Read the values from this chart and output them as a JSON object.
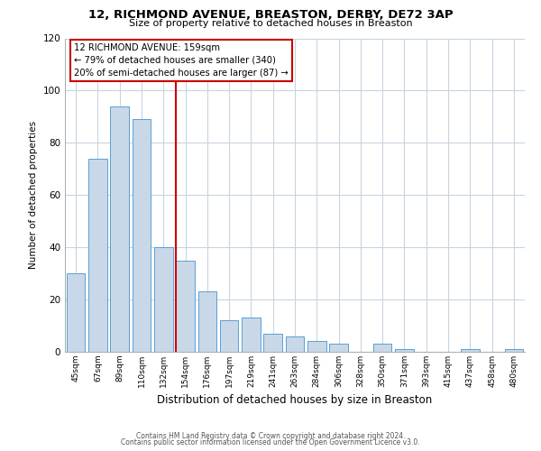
{
  "title_line1": "12, RICHMOND AVENUE, BREASTON, DERBY, DE72 3AP",
  "title_line2": "Size of property relative to detached houses in Breaston",
  "xlabel": "Distribution of detached houses by size in Breaston",
  "ylabel": "Number of detached properties",
  "bar_labels": [
    "45sqm",
    "67sqm",
    "89sqm",
    "110sqm",
    "132sqm",
    "154sqm",
    "176sqm",
    "197sqm",
    "219sqm",
    "241sqm",
    "263sqm",
    "284sqm",
    "306sqm",
    "328sqm",
    "350sqm",
    "371sqm",
    "393sqm",
    "415sqm",
    "437sqm",
    "458sqm",
    "480sqm"
  ],
  "bar_values": [
    30,
    74,
    94,
    89,
    40,
    35,
    23,
    12,
    13,
    7,
    6,
    4,
    3,
    0,
    3,
    1,
    0,
    0,
    1,
    0,
    1
  ],
  "bar_color": "#c8d8e8",
  "bar_edge_color": "#5a9fd4",
  "highlight_color": "#cc0000",
  "vline_index": 5,
  "ylim": [
    0,
    120
  ],
  "yticks": [
    0,
    20,
    40,
    60,
    80,
    100,
    120
  ],
  "annotation_title": "12 RICHMOND AVENUE: 159sqm",
  "annotation_line1": "← 79% of detached houses are smaller (340)",
  "annotation_line2": "20% of semi-detached houses are larger (87) →",
  "footer_line1": "Contains HM Land Registry data © Crown copyright and database right 2024.",
  "footer_line2": "Contains public sector information licensed under the Open Government Licence v3.0.",
  "bg_color": "#ffffff",
  "grid_color": "#c8d4e0"
}
